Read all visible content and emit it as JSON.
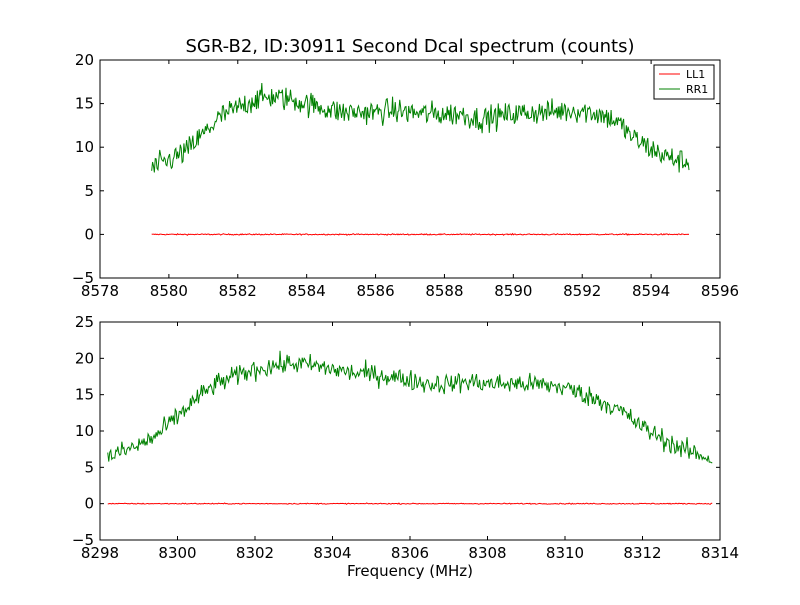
{
  "chart_data": [
    {
      "type": "line",
      "title": "SGR-B2, ID:30911 Second Dcal spectrum (counts)",
      "xlabel": "",
      "ylabel": "",
      "xlim": [
        8578,
        8596
      ],
      "ylim": [
        -5,
        20
      ],
      "xticks": [
        "8578",
        "8580",
        "8582",
        "8584",
        "8586",
        "8588",
        "8590",
        "8592",
        "8594",
        "8596"
      ],
      "yticks": [
        "−5",
        "0",
        "5",
        "10",
        "15",
        "20"
      ],
      "grid": false,
      "legend": {
        "position": "top-right",
        "entries": [
          "LL1",
          "RR1"
        ]
      },
      "series": [
        {
          "name": "LL1",
          "color": "#ff0000",
          "x": [
            8579.5,
            8581,
            8583,
            8585,
            8587,
            8589,
            8591,
            8593,
            8595.1
          ],
          "y": [
            0,
            0,
            0,
            0,
            0,
            0,
            0,
            0,
            0
          ],
          "noise": 0.05
        },
        {
          "name": "RR1",
          "color": "#008000",
          "x": [
            8579.5,
            8580,
            8580.5,
            8581,
            8581.5,
            8582,
            8582.5,
            8583,
            8583.5,
            8584,
            8584.5,
            8585,
            8585.5,
            8586,
            8586.5,
            8587,
            8587.5,
            8588,
            8588.5,
            8589,
            8589.5,
            8590,
            8590.5,
            8591,
            8591.5,
            8592,
            8592.5,
            8593,
            8593.5,
            8594,
            8594.5,
            8595.1
          ],
          "y": [
            7.5,
            8.5,
            9.5,
            11.5,
            13.5,
            14.5,
            15.5,
            15.8,
            15.5,
            15,
            14.5,
            14,
            14,
            14,
            14.2,
            14,
            13.8,
            13.8,
            13.8,
            13.2,
            13.5,
            13.8,
            14,
            14,
            14.2,
            14.2,
            13.8,
            13,
            11,
            9.8,
            8.8,
            8.2
          ],
          "noise": 1.0
        }
      ]
    },
    {
      "type": "line",
      "title": "",
      "xlabel": "Frequency (MHz)",
      "ylabel": "",
      "xlim": [
        8298,
        8314
      ],
      "ylim": [
        -5,
        25
      ],
      "xticks": [
        "8298",
        "8300",
        "8302",
        "8304",
        "8306",
        "8308",
        "8310",
        "8312",
        "8314"
      ],
      "yticks": [
        "−5",
        "0",
        "5",
        "10",
        "15",
        "20",
        "25"
      ],
      "grid": false,
      "series": [
        {
          "color": "#ff0000",
          "x": [
            8298.2,
            8300,
            8302,
            8304,
            8306,
            8308,
            8310,
            8312,
            8313.8
          ],
          "y": [
            0,
            0,
            0,
            0,
            0,
            0,
            0,
            0,
            0
          ],
          "noise": 0.05
        },
        {
          "color": "#008000",
          "x": [
            8298.2,
            8298.5,
            8299,
            8299.5,
            8300,
            8300.5,
            8301,
            8301.5,
            8302,
            8302.5,
            8303,
            8303.5,
            8304,
            8304.5,
            8305,
            8305.5,
            8306,
            8306.5,
            8307,
            8307.5,
            8308,
            8308.5,
            8309,
            8309.5,
            8310,
            8310.5,
            8311,
            8311.5,
            8312,
            8312.5,
            8313,
            8313.8
          ],
          "y": [
            6.5,
            7,
            8,
            9.5,
            12,
            14.5,
            16.5,
            17.5,
            18.5,
            19,
            19.3,
            19,
            18.5,
            18,
            17.8,
            17.5,
            17,
            16.5,
            16.5,
            16.8,
            16.5,
            16.5,
            16.5,
            16.3,
            16,
            15,
            14,
            12.5,
            10.5,
            9,
            7.5,
            6.2
          ],
          "noise": 1.0
        }
      ]
    }
  ]
}
